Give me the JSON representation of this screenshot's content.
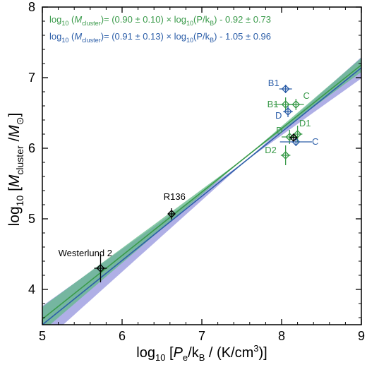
{
  "chart_data": {
    "type": "scatter",
    "xlim": [
      5,
      9
    ],
    "ylim": [
      3.5,
      8
    ],
    "xticks": [
      "5",
      "6",
      "7",
      "8",
      "9"
    ],
    "yticks": [
      "4",
      "5",
      "6",
      "7",
      "8"
    ],
    "xticks_v": [
      5,
      6,
      7,
      8,
      9
    ],
    "yticks_v": [
      4,
      5,
      6,
      7,
      8
    ],
    "xlabel": {
      "pre": "log",
      "sub10": "10",
      "rest": " [",
      "ital": "P",
      "sub": "e",
      "post": "/k",
      "subB": "B",
      "tail": " / (K/cm",
      "sup": "3",
      "end": ")]"
    },
    "ylabel": {
      "pre": "log",
      "sub10": "10",
      "open": " [",
      "ital": "M",
      "sub": "cluster",
      "slash": " /",
      "ital2": "M",
      "sun": "⊙",
      "close": "]"
    },
    "colors": {
      "green": "#3a9a4a",
      "blue": "#2c5ea8",
      "black": "#000000",
      "green_band": "#62b888",
      "blue_band": "#9b9be0"
    },
    "fits": [
      {
        "lhs_pre": "log",
        "lhs_10": "10",
        "lhs_open": " (",
        "lhs_M": "M",
        "lhs_sub": "cluster",
        "rhs": ")= (0.90 ± 0.10) × log",
        "rhs_10": "10",
        "rhs2": "(P/k",
        "rhs_B": "B",
        "rhs3": ") - 0.92 ± 0.73",
        "slope": 0.9,
        "intercept": -0.92,
        "color": "green"
      },
      {
        "lhs_pre": "log",
        "lhs_10": "10",
        "lhs_open": " (",
        "lhs_M": "M",
        "lhs_sub": "cluster",
        "rhs": ")= (0.91 ± 0.13) × log",
        "rhs_10": "10",
        "rhs2": "(P/k",
        "rhs_B": "B",
        "rhs3": ") - 1.05 ± 0.96",
        "slope": 0.91,
        "intercept": -1.05,
        "color": "blue"
      }
    ],
    "points": [
      {
        "label": "Westerlund 2",
        "x": 5.73,
        "y": 4.3,
        "xerr": 0.08,
        "yerr": 0.2,
        "color": "black",
        "lx": 5.2,
        "ly": 4.47
      },
      {
        "label": "R136",
        "x": 6.62,
        "y": 5.07,
        "xerr": 0.04,
        "yerr": 0.08,
        "color": "black",
        "lx": 6.52,
        "ly": 5.27
      },
      {
        "label": "B1",
        "x": 8.05,
        "y": 6.84,
        "xerr": 0.08,
        "yerr": 0.06,
        "color": "blue",
        "lx": 7.83,
        "ly": 6.88
      },
      {
        "label": "B1",
        "x": 8.05,
        "y": 6.62,
        "xerr": 0.15,
        "yerr": 0.1,
        "color": "green",
        "lx": 7.82,
        "ly": 6.58
      },
      {
        "label": "C",
        "x": 8.18,
        "y": 6.62,
        "xerr": 0.1,
        "yerr": 0.08,
        "color": "green",
        "lx": 8.27,
        "ly": 6.7
      },
      {
        "label": "D",
        "x": 8.08,
        "y": 6.52,
        "xerr": 0.06,
        "yerr": 0.08,
        "color": "blue",
        "lx": 7.92,
        "ly": 6.42
      },
      {
        "label": "D",
        "x": 8.1,
        "y": 6.16,
        "xerr": 0.1,
        "yerr": 0.1,
        "color": "green",
        "lx": 7.93,
        "ly": 6.21
      },
      {
        "label": "D1",
        "x": 8.2,
        "y": 6.2,
        "xerr": 0.06,
        "yerr": 0.12,
        "color": "green",
        "lx": 8.22,
        "ly": 6.31
      },
      {
        "label": "C",
        "x": 8.18,
        "y": 6.09,
        "xerr": 0.2,
        "yerr": 0.06,
        "color": "blue",
        "lx": 8.38,
        "ly": 6.05
      },
      {
        "label": "D2",
        "x": 8.05,
        "y": 5.9,
        "xerr": 0.06,
        "yerr": 0.14,
        "color": "green",
        "lx": 7.79,
        "ly": 5.93
      },
      {
        "label": "",
        "x": 8.15,
        "y": 6.15,
        "xerr": 0.04,
        "yerr": 0.05,
        "color": "black",
        "lx": 0,
        "ly": 0
      }
    ]
  }
}
